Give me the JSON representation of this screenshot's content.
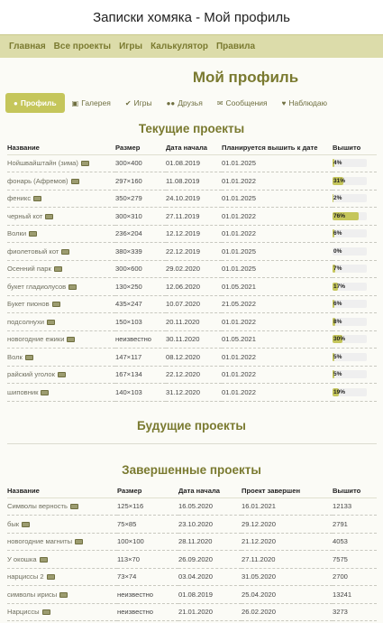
{
  "window": {
    "title": "Записки хомяка - Мой профиль"
  },
  "nav": [
    "Главная",
    "Все проекты",
    "Игры",
    "Калькулятор",
    "Правила"
  ],
  "page_title": "Мой профиль",
  "tabs": [
    {
      "label": "Профиль",
      "icon": "user-icon",
      "active": true
    },
    {
      "label": "Галерея",
      "icon": "image-icon",
      "active": false
    },
    {
      "label": "Игры",
      "icon": "check-icon",
      "active": false
    },
    {
      "label": "Друзья",
      "icon": "users-icon",
      "active": false
    },
    {
      "label": "Сообщения",
      "icon": "envelope-icon",
      "active": false
    },
    {
      "label": "Наблюдаю",
      "icon": "heart-icon",
      "active": false
    }
  ],
  "current": {
    "title": "Текущие проекты",
    "headers": [
      "Название",
      "Размер",
      "Дата начала",
      "Планируется вышить к дате",
      "Вышито"
    ],
    "rows": [
      {
        "name": "Нойшвайштайн (зима)",
        "size": "300×400",
        "start": "01.08.2019",
        "plan": "01.01.2025",
        "pct": 4,
        "pct_label": "4%"
      },
      {
        "name": "фонарь (Афремов)",
        "size": "297×160",
        "start": "11.08.2019",
        "plan": "01.01.2022",
        "pct": 31,
        "pct_label": "31%"
      },
      {
        "name": "феникс",
        "size": "350×279",
        "start": "24.10.2019",
        "plan": "01.01.2025",
        "pct": 2,
        "pct_label": "2%"
      },
      {
        "name": "черный кот",
        "size": "300×310",
        "start": "27.11.2019",
        "plan": "01.01.2022",
        "pct": 76,
        "pct_label": "76%"
      },
      {
        "name": "Волки",
        "size": "236×204",
        "start": "12.12.2019",
        "plan": "01.01.2022",
        "pct": 6,
        "pct_label": "6%"
      },
      {
        "name": "фиолетовый кот",
        "size": "380×339",
        "start": "22.12.2019",
        "plan": "01.01.2025",
        "pct": 0,
        "pct_label": "0%"
      },
      {
        "name": "Осенний парк",
        "size": "300×600",
        "start": "29.02.2020",
        "plan": "01.01.2025",
        "pct": 7,
        "pct_label": "7%"
      },
      {
        "name": "букет гладиолусов",
        "size": "130×250",
        "start": "12.06.2020",
        "plan": "01.05.2021",
        "pct": 17,
        "pct_label": "17%"
      },
      {
        "name": "Букет пионов",
        "size": "435×247",
        "start": "10.07.2020",
        "plan": "21.05.2022",
        "pct": 6,
        "pct_label": "6%"
      },
      {
        "name": "подсолнухи",
        "size": "150×103",
        "start": "20.11.2020",
        "plan": "01.01.2022",
        "pct": 8,
        "pct_label": "8%"
      },
      {
        "name": "новогодние ежики",
        "size": "неизвестно",
        "start": "30.11.2020",
        "plan": "01.05.2021",
        "pct": 30,
        "pct_label": "30%"
      },
      {
        "name": "Волк",
        "size": "147×117",
        "start": "08.12.2020",
        "plan": "01.01.2022",
        "pct": 5,
        "pct_label": "5%"
      },
      {
        "name": "райский уголок",
        "size": "167×134",
        "start": "22.12.2020",
        "plan": "01.01.2022",
        "pct": 5,
        "pct_label": "5%"
      },
      {
        "name": "шиповник",
        "size": "140×103",
        "start": "31.12.2020",
        "plan": "01.01.2022",
        "pct": 19,
        "pct_label": "19%"
      }
    ]
  },
  "future": {
    "title": "Будущие проекты"
  },
  "completed": {
    "title": "Завершенные проекты",
    "headers": [
      "Название",
      "Размер",
      "Дата начала",
      "Проект завершен",
      "Вышито"
    ],
    "rows": [
      {
        "name": "Символы верность",
        "size": "125×116",
        "start": "16.05.2020",
        "end": "16.01.2021",
        "stitches": "12133"
      },
      {
        "name": "бык",
        "size": "75×85",
        "start": "23.10.2020",
        "end": "29.12.2020",
        "stitches": "2791"
      },
      {
        "name": "новогодние магниты",
        "size": "100×100",
        "start": "28.11.2020",
        "end": "21.12.2020",
        "stitches": "4053"
      },
      {
        "name": "У окошка",
        "size": "113×70",
        "start": "26.09.2020",
        "end": "27.11.2020",
        "stitches": "7575"
      },
      {
        "name": "нарциссы 2",
        "size": "73×74",
        "start": "03.04.2020",
        "end": "31.05.2020",
        "stitches": "2700"
      },
      {
        "name": "символы ирисы",
        "size": "неизвестно",
        "start": "01.08.2019",
        "end": "25.04.2020",
        "stitches": "13241"
      },
      {
        "name": "Нарциссы",
        "size": "неизвестно",
        "start": "21.01.2020",
        "end": "26.02.2020",
        "stitches": "3273"
      }
    ]
  },
  "colors": {
    "accent": "#c5c65b",
    "nav_bg": "#dcdcaa",
    "title": "#7a7a30"
  }
}
